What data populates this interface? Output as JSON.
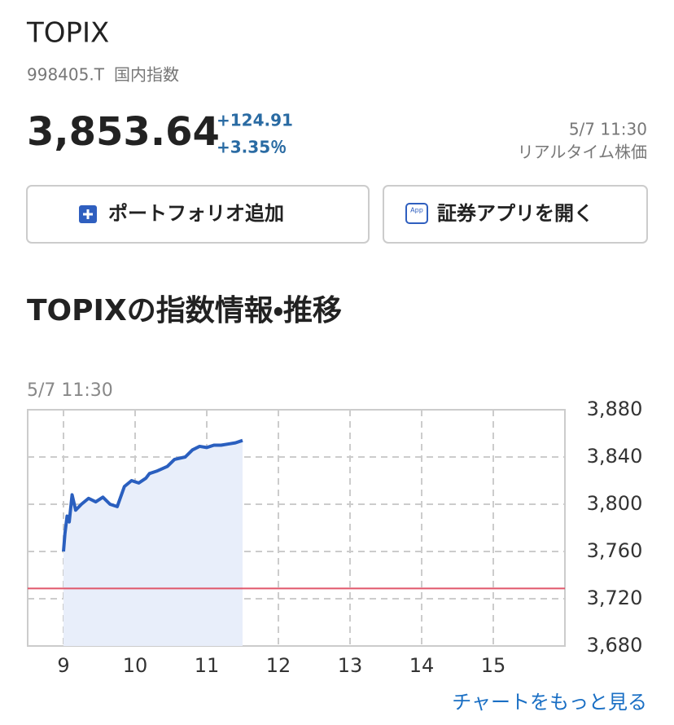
{
  "header": {
    "title": "TOPIX",
    "code": "998405.T",
    "category": "国内指数",
    "price": "3,853.64",
    "change": "+124.91",
    "change_percent": "+3.35％",
    "time": "5/7 11:30",
    "time_note": "リアルタイム株価"
  },
  "buttons": {
    "portfolio": "ポートフォリオ追加",
    "app_icon": "App",
    "app": "証券アプリを開く"
  },
  "section_title": "TOPIXの指数情報・推移",
  "chart_data": {
    "type": "line",
    "subtitle": "5/7 11:30",
    "x": [
      9.0,
      9.02,
      9.05,
      9.08,
      9.12,
      9.17,
      9.25,
      9.35,
      9.45,
      9.55,
      9.65,
      9.75,
      9.85,
      9.95,
      10.05,
      10.15,
      10.2,
      10.3,
      10.45,
      10.55,
      10.7,
      10.8,
      10.9,
      11.0,
      11.1,
      11.2,
      11.3,
      11.4,
      11.5
    ],
    "series": [
      {
        "color": "#2a5fbf",
        "values": [
          3760,
          3775,
          3790,
          3785,
          3808,
          3795,
          3800,
          3805,
          3802,
          3806,
          3800,
          3798,
          3815,
          3820,
          3818,
          3822,
          3826,
          3828,
          3832,
          3838,
          3840,
          3846,
          3849,
          3848,
          3850,
          3850,
          3851,
          3852,
          3854
        ]
      }
    ],
    "area_color": "#e8eefa",
    "reference_line": 3728.73,
    "reference_color": "#e0566a",
    "xlim": [
      8.5,
      16
    ],
    "xticks": [
      9,
      10,
      11,
      12,
      13,
      14,
      15
    ],
    "ylim": [
      3680,
      3880
    ],
    "yticks": [
      {
        "value": 3680,
        "label": "3,680"
      },
      {
        "value": 3720,
        "label": "3,720"
      },
      {
        "value": 3760,
        "label": "3,760"
      },
      {
        "value": 3800,
        "label": "3,800"
      },
      {
        "value": 3840,
        "label": "3,840"
      },
      {
        "value": 3880,
        "label": "3,880"
      }
    ],
    "grid": true
  },
  "more_link": "チャートをもっと見る"
}
